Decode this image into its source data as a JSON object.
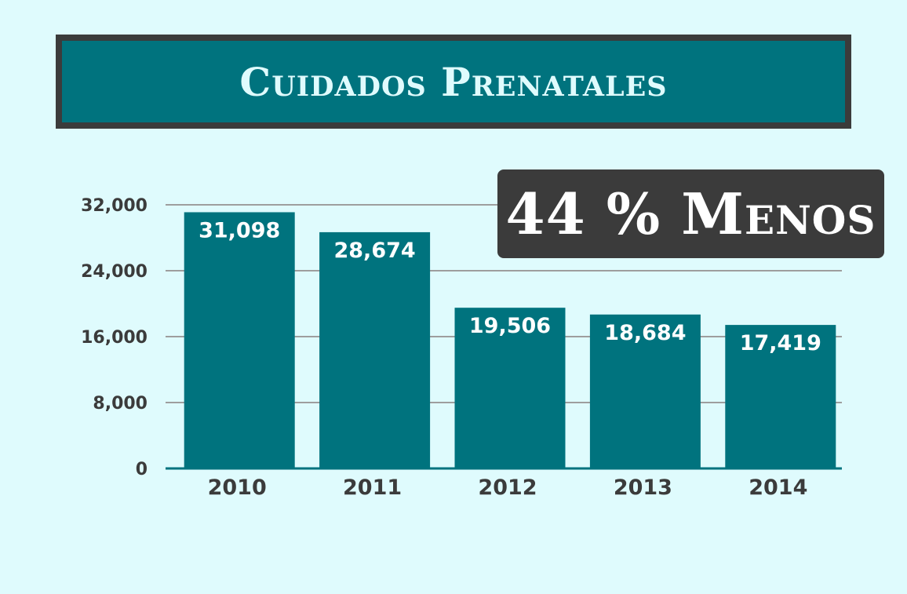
{
  "title": "Cuidados Prenatales",
  "callout": "44 % Menos",
  "chart_data": {
    "type": "bar",
    "title": "Cuidados Prenatales",
    "categories": [
      "2010",
      "2011",
      "2012",
      "2013",
      "2014"
    ],
    "values": [
      31098,
      28674,
      19506,
      18684,
      17419
    ],
    "value_labels": [
      "31,098",
      "28,674",
      "19,506",
      "18,684",
      "17,419"
    ],
    "yticks": [
      0,
      8000,
      16000,
      24000,
      32000
    ],
    "ytick_labels": [
      "0",
      "8,000",
      "16,000",
      "24,000",
      "32,000"
    ],
    "ylim": [
      0,
      32000
    ],
    "grid": true,
    "xlabel": "",
    "ylabel": ""
  },
  "colors": {
    "background": "#dffbfd",
    "bar": "#00737e",
    "banner": "#00737e",
    "banner_border": "#3b3b3b",
    "callout_bg": "#3b3b3b",
    "gridline": "#9e9e9e",
    "text_dark": "#3b3b3b"
  }
}
